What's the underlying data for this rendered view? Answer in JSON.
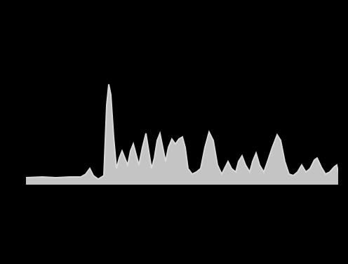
{
  "chart_data": {
    "type": "area",
    "color": "#d9d9d9",
    "tick_labels": false,
    "grid": false,
    "xlim": [
      0,
      445
    ],
    "ylim": [
      0,
      150
    ],
    "x": [
      0,
      23,
      43,
      63,
      78,
      85,
      91,
      96,
      103,
      111,
      115,
      118,
      121,
      125,
      129,
      133,
      137,
      141,
      145,
      149,
      153,
      157,
      161,
      166,
      171,
      175,
      179,
      183,
      187,
      191,
      195,
      199,
      203,
      208,
      213,
      218,
      223,
      227,
      231,
      237,
      243,
      249,
      255,
      261,
      267,
      273,
      279,
      283,
      288,
      293,
      299,
      303,
      308,
      313,
      319,
      323,
      328,
      333,
      339,
      345,
      351,
      358,
      363,
      369,
      375,
      381,
      387,
      393,
      399,
      405,
      411,
      415,
      421,
      427,
      433,
      439,
      443,
      445
    ],
    "values": [
      10,
      11,
      10,
      11,
      11,
      15,
      23,
      13,
      8,
      13,
      113,
      143,
      128,
      68,
      23,
      38,
      48,
      38,
      28,
      48,
      58,
      43,
      28,
      53,
      73,
      48,
      23,
      38,
      63,
      73,
      53,
      33,
      53,
      65,
      58,
      65,
      68,
      53,
      23,
      15,
      18,
      23,
      53,
      75,
      63,
      28,
      15,
      23,
      33,
      23,
      18,
      33,
      41,
      28,
      18,
      33,
      45,
      28,
      18,
      35,
      53,
      71,
      63,
      33,
      15,
      13,
      18,
      28,
      18,
      23,
      35,
      38,
      25,
      15,
      18,
      25,
      28,
      18
    ]
  }
}
